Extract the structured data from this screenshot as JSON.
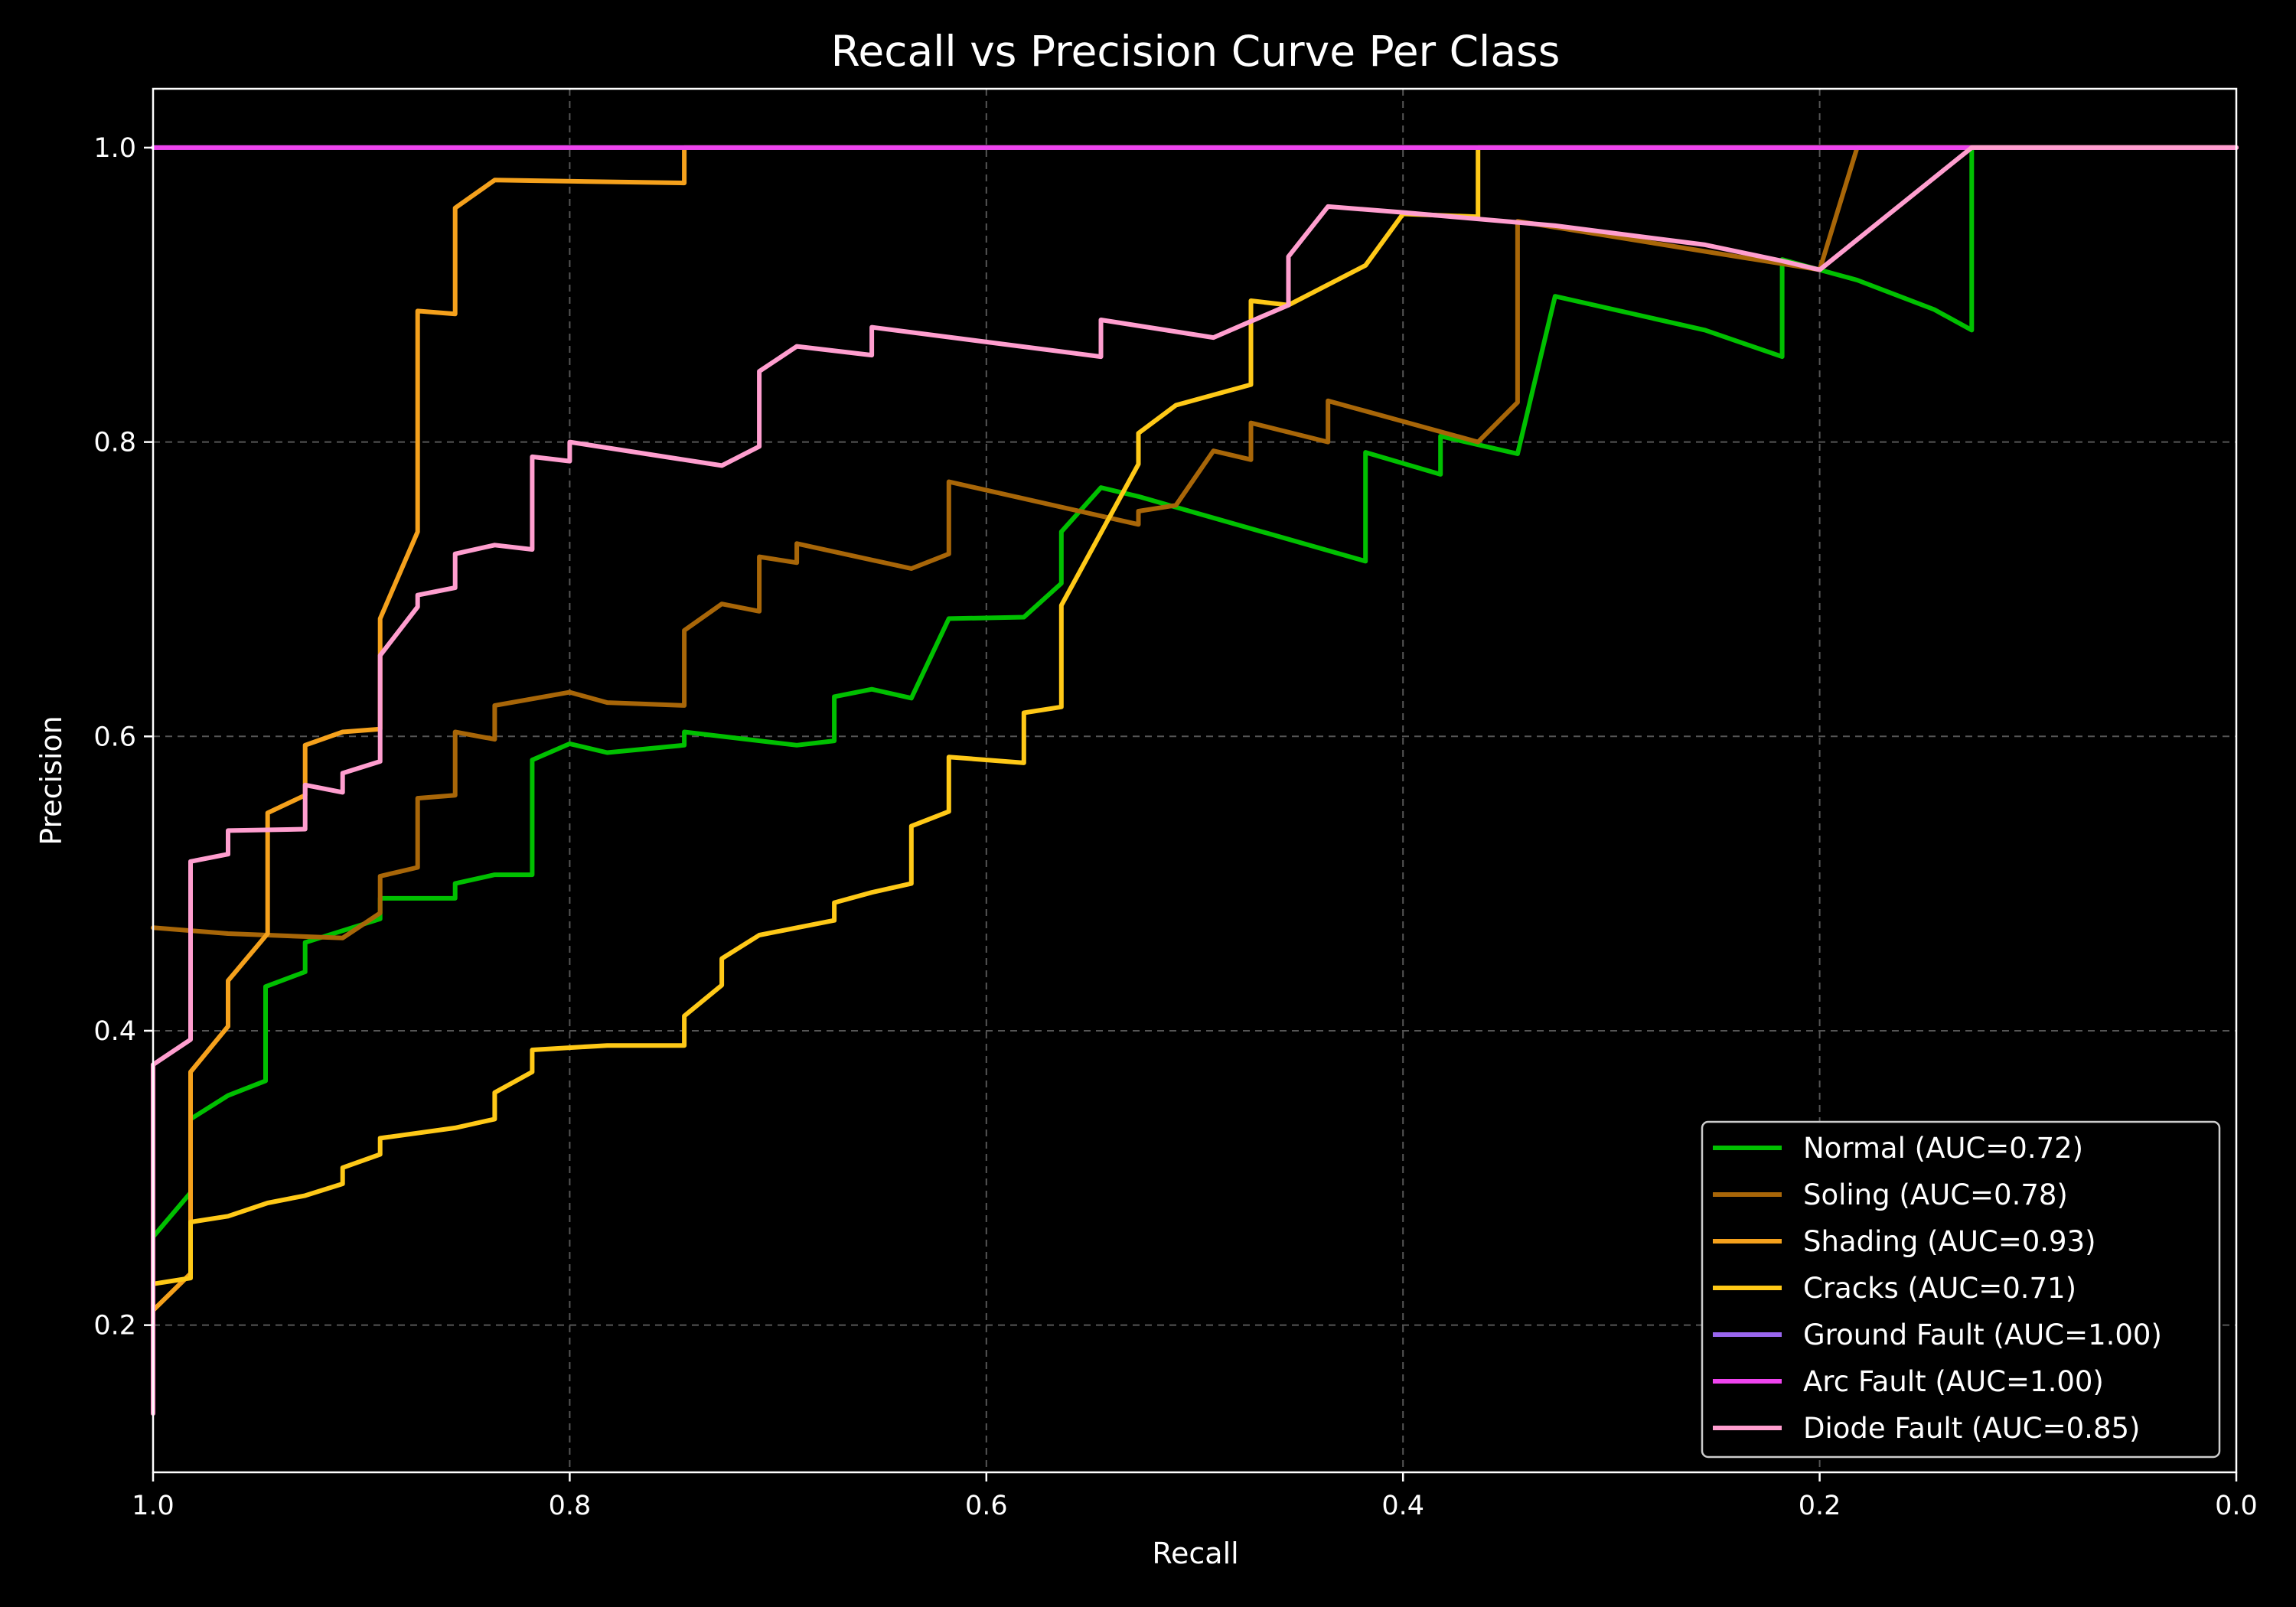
{
  "chart_data": {
    "type": "line",
    "title": "Recall vs Precision Curve Per Class",
    "xlabel": "Recall",
    "ylabel": "Precision",
    "xlim": [
      1.0,
      0.0
    ],
    "ylim": [
      0.1,
      1.04
    ],
    "x_inverted": true,
    "xticks": [
      "1.0",
      "0.8",
      "0.6",
      "0.4",
      "0.2",
      "0.0"
    ],
    "yticks": [
      "0.2",
      "0.4",
      "0.6",
      "0.8",
      "1.0"
    ],
    "grid": true,
    "legend_position": "bottom-right",
    "series": [
      {
        "name": "Normal (AUC=0.72)",
        "color": "#00c000",
        "points": [
          [
            1.0,
            0.26
          ],
          [
            0.982,
            0.29
          ],
          [
            0.982,
            0.34
          ],
          [
            0.964,
            0.356
          ],
          [
            0.946,
            0.366
          ],
          [
            0.946,
            0.43
          ],
          [
            0.927,
            0.44
          ],
          [
            0.927,
            0.46
          ],
          [
            0.891,
            0.476
          ],
          [
            0.891,
            0.49
          ],
          [
            0.855,
            0.49
          ],
          [
            0.855,
            0.5
          ],
          [
            0.836,
            0.506
          ],
          [
            0.818,
            0.506
          ],
          [
            0.818,
            0.584
          ],
          [
            0.8,
            0.595
          ],
          [
            0.782,
            0.589
          ],
          [
            0.745,
            0.594
          ],
          [
            0.745,
            0.603
          ],
          [
            0.691,
            0.594
          ],
          [
            0.673,
            0.597
          ],
          [
            0.673,
            0.627
          ],
          [
            0.655,
            0.632
          ],
          [
            0.636,
            0.626
          ],
          [
            0.618,
            0.68
          ],
          [
            0.582,
            0.681
          ],
          [
            0.564,
            0.704
          ],
          [
            0.564,
            0.739
          ],
          [
            0.545,
            0.769
          ],
          [
            0.527,
            0.763
          ],
          [
            0.418,
            0.719
          ],
          [
            0.418,
            0.793
          ],
          [
            0.382,
            0.778
          ],
          [
            0.382,
            0.804
          ],
          [
            0.345,
            0.792
          ],
          [
            0.327,
            0.899
          ],
          [
            0.255,
            0.876
          ],
          [
            0.218,
            0.858
          ],
          [
            0.218,
            0.924
          ],
          [
            0.2,
            0.917
          ],
          [
            0.182,
            0.91
          ],
          [
            0.145,
            0.89
          ],
          [
            0.127,
            0.876
          ],
          [
            0.127,
            1.0
          ],
          [
            0.0,
            1.0
          ]
        ]
      },
      {
        "name": "Soling (AUC=0.78)",
        "color": "#a86608",
        "points": [
          [
            1.0,
            0.47
          ],
          [
            0.964,
            0.466
          ],
          [
            0.909,
            0.463
          ],
          [
            0.891,
            0.48
          ],
          [
            0.891,
            0.505
          ],
          [
            0.873,
            0.511
          ],
          [
            0.873,
            0.558
          ],
          [
            0.855,
            0.56
          ],
          [
            0.855,
            0.603
          ],
          [
            0.836,
            0.598
          ],
          [
            0.836,
            0.621
          ],
          [
            0.8,
            0.63
          ],
          [
            0.782,
            0.623
          ],
          [
            0.745,
            0.621
          ],
          [
            0.745,
            0.672
          ],
          [
            0.727,
            0.69
          ],
          [
            0.709,
            0.685
          ],
          [
            0.709,
            0.722
          ],
          [
            0.691,
            0.718
          ],
          [
            0.691,
            0.731
          ],
          [
            0.636,
            0.714
          ],
          [
            0.618,
            0.724
          ],
          [
            0.618,
            0.773
          ],
          [
            0.527,
            0.744
          ],
          [
            0.527,
            0.753
          ],
          [
            0.509,
            0.757
          ],
          [
            0.491,
            0.794
          ],
          [
            0.473,
            0.788
          ],
          [
            0.473,
            0.813
          ],
          [
            0.436,
            0.8
          ],
          [
            0.436,
            0.828
          ],
          [
            0.364,
            0.8
          ],
          [
            0.345,
            0.827
          ],
          [
            0.345,
            0.95
          ],
          [
            0.2,
            0.917
          ],
          [
            0.182,
            1.0
          ],
          [
            0.0,
            1.0
          ]
        ]
      },
      {
        "name": "Shading (AUC=0.93)",
        "color": "#f5a11c",
        "points": [
          [
            1.0,
            0.21
          ],
          [
            0.982,
            0.235
          ],
          [
            0.982,
            0.372
          ],
          [
            0.964,
            0.403
          ],
          [
            0.964,
            0.434
          ],
          [
            0.945,
            0.466
          ],
          [
            0.945,
            0.548
          ],
          [
            0.927,
            0.56
          ],
          [
            0.927,
            0.594
          ],
          [
            0.909,
            0.603
          ],
          [
            0.891,
            0.605
          ],
          [
            0.891,
            0.68
          ],
          [
            0.873,
            0.739
          ],
          [
            0.873,
            0.889
          ],
          [
            0.855,
            0.887
          ],
          [
            0.855,
            0.959
          ],
          [
            0.836,
            0.978
          ],
          [
            0.745,
            0.976
          ],
          [
            0.745,
            1.0
          ],
          [
            0.0,
            1.0
          ]
        ]
      },
      {
        "name": "Cracks (AUC=0.71)",
        "color": "#ffc917",
        "points": [
          [
            1.0,
            0.228
          ],
          [
            0.982,
            0.232
          ],
          [
            0.982,
            0.27
          ],
          [
            0.964,
            0.274
          ],
          [
            0.945,
            0.283
          ],
          [
            0.927,
            0.288
          ],
          [
            0.909,
            0.296
          ],
          [
            0.909,
            0.307
          ],
          [
            0.891,
            0.316
          ],
          [
            0.891,
            0.327
          ],
          [
            0.855,
            0.334
          ],
          [
            0.836,
            0.34
          ],
          [
            0.836,
            0.358
          ],
          [
            0.818,
            0.372
          ],
          [
            0.818,
            0.387
          ],
          [
            0.782,
            0.39
          ],
          [
            0.745,
            0.39
          ],
          [
            0.745,
            0.41
          ],
          [
            0.727,
            0.431
          ],
          [
            0.727,
            0.449
          ],
          [
            0.709,
            0.465
          ],
          [
            0.673,
            0.475
          ],
          [
            0.673,
            0.487
          ],
          [
            0.655,
            0.494
          ],
          [
            0.636,
            0.5
          ],
          [
            0.636,
            0.539
          ],
          [
            0.618,
            0.549
          ],
          [
            0.618,
            0.586
          ],
          [
            0.582,
            0.582
          ],
          [
            0.582,
            0.616
          ],
          [
            0.564,
            0.62
          ],
          [
            0.564,
            0.689
          ],
          [
            0.527,
            0.785
          ],
          [
            0.527,
            0.806
          ],
          [
            0.509,
            0.825
          ],
          [
            0.473,
            0.839
          ],
          [
            0.473,
            0.896
          ],
          [
            0.455,
            0.893
          ],
          [
            0.418,
            0.92
          ],
          [
            0.4,
            0.955
          ],
          [
            0.364,
            0.953
          ],
          [
            0.364,
            1.0
          ],
          [
            0.0,
            1.0
          ]
        ]
      },
      {
        "name": "Ground Fault (AUC=1.00)",
        "color": "#9966ee",
        "points": [
          [
            1.0,
            1.0
          ],
          [
            0.0,
            1.0
          ]
        ]
      },
      {
        "name": "Arc Fault (AUC=1.00)",
        "color": "#ee44ee",
        "points": [
          [
            1.0,
            1.0
          ],
          [
            0.0,
            1.0
          ]
        ]
      },
      {
        "name": "Diode Fault (AUC=0.85)",
        "color": "#ff9ecf",
        "points": [
          [
            1.0,
            0.14
          ],
          [
            1.0,
            0.377
          ],
          [
            0.982,
            0.394
          ],
          [
            0.982,
            0.515
          ],
          [
            0.964,
            0.52
          ],
          [
            0.964,
            0.536
          ],
          [
            0.927,
            0.537
          ],
          [
            0.927,
            0.567
          ],
          [
            0.909,
            0.562
          ],
          [
            0.909,
            0.575
          ],
          [
            0.891,
            0.583
          ],
          [
            0.891,
            0.655
          ],
          [
            0.873,
            0.688
          ],
          [
            0.873,
            0.696
          ],
          [
            0.855,
            0.701
          ],
          [
            0.855,
            0.724
          ],
          [
            0.836,
            0.73
          ],
          [
            0.818,
            0.727
          ],
          [
            0.818,
            0.79
          ],
          [
            0.8,
            0.787
          ],
          [
            0.8,
            0.8
          ],
          [
            0.727,
            0.784
          ],
          [
            0.709,
            0.797
          ],
          [
            0.709,
            0.848
          ],
          [
            0.691,
            0.865
          ],
          [
            0.655,
            0.859
          ],
          [
            0.655,
            0.878
          ],
          [
            0.545,
            0.858
          ],
          [
            0.545,
            0.883
          ],
          [
            0.491,
            0.871
          ],
          [
            0.455,
            0.893
          ],
          [
            0.455,
            0.926
          ],
          [
            0.436,
            0.96
          ],
          [
            0.4,
            0.956
          ],
          [
            0.327,
            0.947
          ],
          [
            0.255,
            0.934
          ],
          [
            0.218,
            0.923
          ],
          [
            0.2,
            0.917
          ],
          [
            0.127,
            1.0
          ],
          [
            0.0,
            1.0
          ]
        ]
      }
    ]
  }
}
